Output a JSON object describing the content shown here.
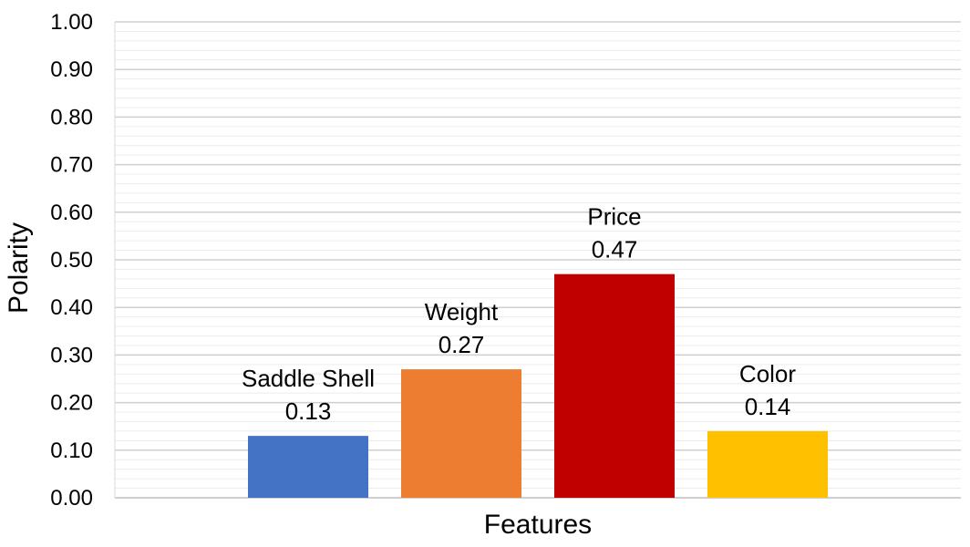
{
  "chart_data": {
    "type": "bar",
    "title": "",
    "xlabel": "Features",
    "ylabel": "Polarity",
    "ylim": [
      0,
      1.0
    ],
    "y_major_step": 0.1,
    "y_minor_step": 0.02,
    "y_tick_format": "0.00",
    "grid": true,
    "legend": "none",
    "categories": [
      "Saddle Shell",
      "Weight",
      "Price",
      "Color"
    ],
    "values": [
      0.13,
      0.27,
      0.47,
      0.14
    ],
    "data_labels": [
      "0.13",
      "0.27",
      "0.47",
      "0.14"
    ],
    "colors": [
      "#4472C4",
      "#ED7D31",
      "#C00000",
      "#FFC000"
    ],
    "y_tick_labels": [
      "0.00",
      "0.10",
      "0.20",
      "0.30",
      "0.40",
      "0.50",
      "0.60",
      "0.70",
      "0.80",
      "0.90",
      "1.00"
    ]
  }
}
